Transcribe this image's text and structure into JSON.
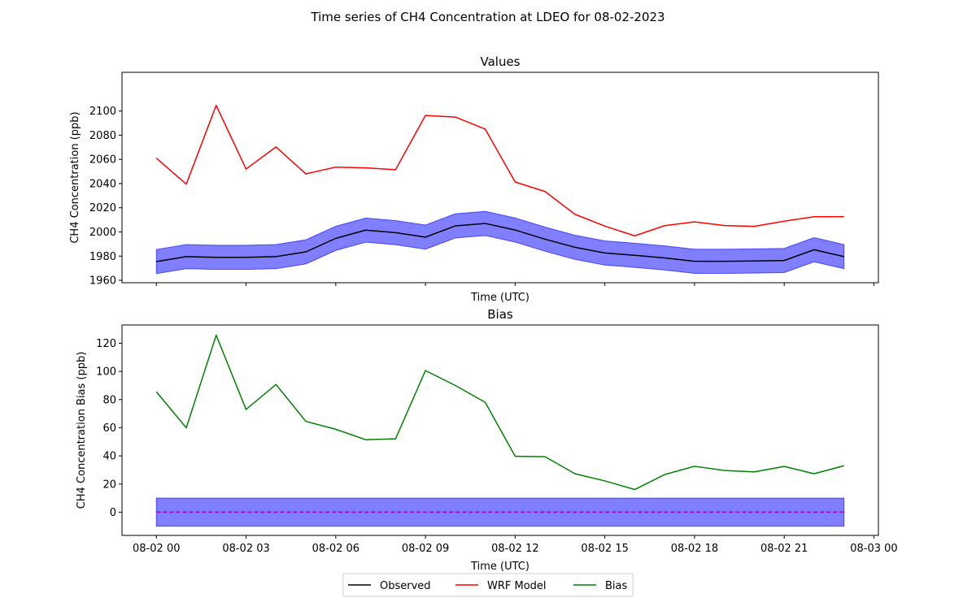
{
  "figure": {
    "title": "Time series of CH4 Concentration at LDEO for 08-02-2023"
  },
  "legend": {
    "placement": "bottom-center",
    "entries": [
      {
        "label": "Observed",
        "color": "#000000"
      },
      {
        "label": "WRF Model",
        "color": "#ff0000"
      },
      {
        "label": "Bias",
        "color": "#008000"
      }
    ]
  },
  "chart_data": [
    {
      "type": "line",
      "title": "Values",
      "xlabel": "Time (UTC)",
      "ylabel": "CH4 Concentration (ppb)",
      "x_tick_labels_visible": false,
      "x_hours": [
        0,
        1,
        2,
        3,
        4,
        5,
        6,
        7,
        8,
        9,
        10,
        11,
        12,
        13,
        14,
        15,
        16,
        17,
        18,
        19,
        20,
        21,
        22,
        23
      ],
      "xlim_hours": [
        -1.15,
        24.15
      ],
      "x_ticks": [
        {
          "hour": 0,
          "label": "08-02 00"
        },
        {
          "hour": 3,
          "label": "08-02 03"
        },
        {
          "hour": 6,
          "label": "08-02 06"
        },
        {
          "hour": 9,
          "label": "08-02 09"
        },
        {
          "hour": 12,
          "label": "08-02 12"
        },
        {
          "hour": 15,
          "label": "08-02 15"
        },
        {
          "hour": 18,
          "label": "08-02 18"
        },
        {
          "hour": 21,
          "label": "08-02 21"
        },
        {
          "hour": 24,
          "label": "08-03 00"
        }
      ],
      "ylim": [
        1958,
        2132
      ],
      "y_ticks": [
        1960,
        1980,
        2000,
        2020,
        2040,
        2060,
        2080,
        2100
      ],
      "series": [
        {
          "name": "Observed",
          "color": "#000000",
          "values": [
            1975.5,
            1979.6,
            1979.0,
            1979.0,
            1979.6,
            1983.5,
            1994.7,
            2001.5,
            1999.4,
            1995.7,
            2005.0,
            2007.0,
            2001.6,
            1994.0,
            1987.3,
            1982.6,
            1980.7,
            1978.5,
            1975.7,
            1975.7,
            1976.0,
            1976.4,
            1985.3,
            1979.6
          ]
        },
        {
          "name": "WRF Model",
          "color": "#ff0000",
          "values": [
            2061.0,
            2039.5,
            2104.7,
            2052.0,
            2070.3,
            2048.0,
            2053.6,
            2053.0,
            2051.5,
            2096.3,
            2095.0,
            2085.0,
            2041.3,
            2033.4,
            2014.6,
            2004.8,
            1996.8,
            2005.2,
            2008.3,
            2005.3,
            2004.6,
            2008.9,
            2012.6,
            2012.6
          ]
        }
      ],
      "uncertainty_band": {
        "around": "Observed",
        "half_width": 10,
        "color": "#0000ff",
        "opacity": 0.5
      }
    },
    {
      "type": "line",
      "title": "Bias",
      "xlabel": "Time (UTC)",
      "ylabel": "CH4 Concentration Bias (ppb)",
      "x_tick_labels_visible": true,
      "x_hours": [
        0,
        1,
        2,
        3,
        4,
        5,
        6,
        7,
        8,
        9,
        10,
        11,
        12,
        13,
        14,
        15,
        16,
        17,
        18,
        19,
        20,
        21,
        22,
        23
      ],
      "xlim_hours": [
        -1.15,
        24.15
      ],
      "x_ticks": [
        {
          "hour": 0,
          "label": "08-02 00"
        },
        {
          "hour": 3,
          "label": "08-02 03"
        },
        {
          "hour": 6,
          "label": "08-02 06"
        },
        {
          "hour": 9,
          "label": "08-02 09"
        },
        {
          "hour": 12,
          "label": "08-02 12"
        },
        {
          "hour": 15,
          "label": "08-02 15"
        },
        {
          "hour": 18,
          "label": "08-02 18"
        },
        {
          "hour": 21,
          "label": "08-02 21"
        },
        {
          "hour": 24,
          "label": "08-03 00"
        }
      ],
      "ylim": [
        -16.5,
        133
      ],
      "y_ticks": [
        0,
        20,
        40,
        60,
        80,
        100,
        120
      ],
      "series": [
        {
          "name": "Bias",
          "color": "#008000",
          "values": [
            85.5,
            59.9,
            125.7,
            73.0,
            90.7,
            64.5,
            58.9,
            51.5,
            52.1,
            100.6,
            90.0,
            78.0,
            39.7,
            39.4,
            27.3,
            22.2,
            16.1,
            26.7,
            32.6,
            29.6,
            28.6,
            32.5,
            27.3,
            33.0
          ]
        }
      ],
      "zero_line": {
        "value": 0,
        "color": "#9400d3",
        "dashed": true
      },
      "uncertainty_band": {
        "lower": -10,
        "upper": 10,
        "color": "#0000ff",
        "opacity": 0.5
      }
    }
  ]
}
